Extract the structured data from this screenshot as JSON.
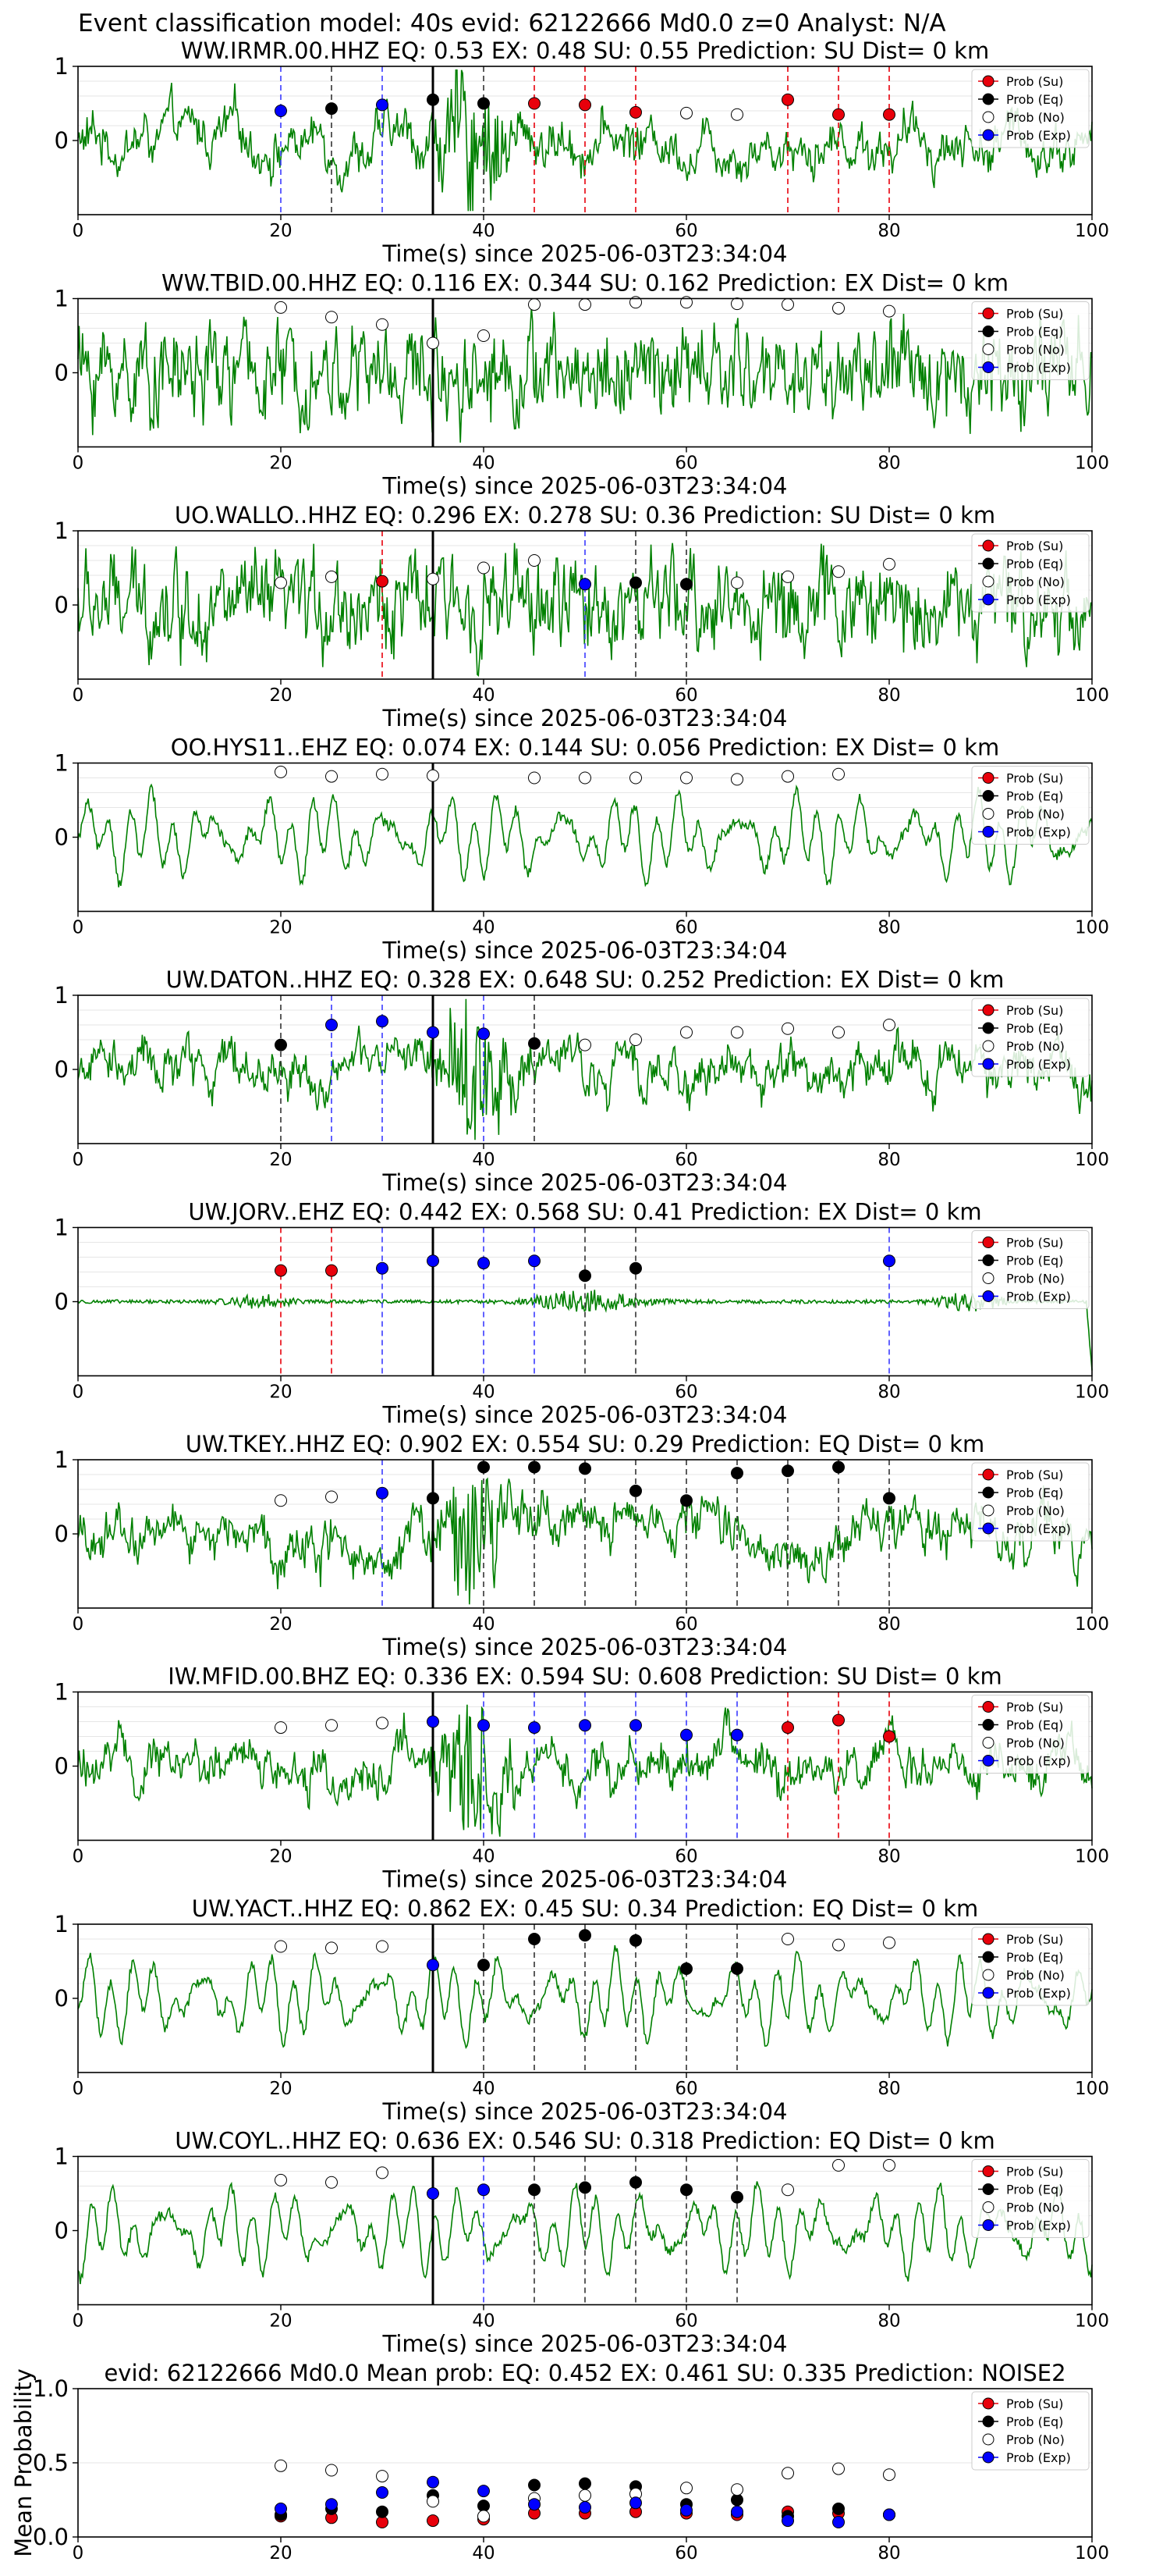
{
  "suptitle": "Event classification model: 40s evid: 62122666 Md0.0 z=0 Analyst: N/A",
  "legend_labels": [
    "Prob (Su)",
    "Prob (Eq)",
    "Prob (No)",
    "Prob (Exp)"
  ],
  "colors": {
    "su": "#e8000b",
    "eq": "#000000",
    "no": "#ffffff",
    "exp": "#0000ff",
    "wave": "#008000",
    "origin_line": "#000000"
  },
  "chart_data": [
    {
      "type": "line",
      "title": "WW.IRMR.00.HHZ   EQ: 0.53  EX: 0.48  SU: 0.55   Prediction: SU    Dist= 0 km",
      "xlabel": "Time(s) since 2025-06-03T23:34:04",
      "ylabel": "",
      "xlim": [
        0,
        100
      ],
      "ylim": [
        -1,
        1
      ],
      "yticks": [
        "1",
        "0"
      ],
      "xticks": [
        "0",
        "20",
        "40",
        "60",
        "80",
        "100"
      ],
      "grid": "y",
      "legend": "top-right",
      "style": "broadband",
      "origin": 35,
      "points": [
        {
          "t": 20,
          "p": 0.4,
          "c": "exp"
        },
        {
          "t": 25,
          "p": 0.43,
          "c": "eq"
        },
        {
          "t": 30,
          "p": 0.48,
          "c": "exp"
        },
        {
          "t": 35,
          "p": 0.55,
          "c": "eq"
        },
        {
          "t": 40,
          "p": 0.5,
          "c": "eq"
        },
        {
          "t": 45,
          "p": 0.5,
          "c": "su"
        },
        {
          "t": 50,
          "p": 0.48,
          "c": "su"
        },
        {
          "t": 55,
          "p": 0.38,
          "c": "su"
        },
        {
          "t": 60,
          "p": 0.37,
          "c": "no"
        },
        {
          "t": 65,
          "p": 0.35,
          "c": "no"
        },
        {
          "t": 70,
          "p": 0.55,
          "c": "su"
        },
        {
          "t": 75,
          "p": 0.35,
          "c": "su"
        },
        {
          "t": 80,
          "p": 0.35,
          "c": "su"
        }
      ]
    },
    {
      "type": "line",
      "title": "WW.TBID.00.HHZ   EQ: 0.116  EX: 0.344  SU: 0.162   Prediction: EX    Dist= 0 km",
      "xlabel": "Time(s) since 2025-06-03T23:34:04",
      "ylabel": "",
      "xlim": [
        0,
        100
      ],
      "ylim": [
        -1,
        1
      ],
      "yticks": [
        "1",
        "0"
      ],
      "xticks": [
        "0",
        "20",
        "40",
        "60",
        "80",
        "100"
      ],
      "grid": "y",
      "legend": "top-right",
      "style": "noisy",
      "origin": 35,
      "points": [
        {
          "t": 20,
          "p": 0.88,
          "c": "no"
        },
        {
          "t": 25,
          "p": 0.75,
          "c": "no"
        },
        {
          "t": 30,
          "p": 0.65,
          "c": "no"
        },
        {
          "t": 35,
          "p": 0.4,
          "c": "no"
        },
        {
          "t": 40,
          "p": 0.5,
          "c": "no"
        },
        {
          "t": 45,
          "p": 0.92,
          "c": "no"
        },
        {
          "t": 50,
          "p": 0.92,
          "c": "no"
        },
        {
          "t": 55,
          "p": 0.95,
          "c": "no"
        },
        {
          "t": 60,
          "p": 0.95,
          "c": "no"
        },
        {
          "t": 65,
          "p": 0.93,
          "c": "no"
        },
        {
          "t": 70,
          "p": 0.92,
          "c": "no"
        },
        {
          "t": 75,
          "p": 0.87,
          "c": "no"
        },
        {
          "t": 80,
          "p": 0.83,
          "c": "no"
        }
      ]
    },
    {
      "type": "line",
      "title": "UO.WALLO..HHZ   EQ: 0.296  EX: 0.278  SU: 0.36   Prediction: SU    Dist= 0 km",
      "xlabel": "Time(s) since 2025-06-03T23:34:04",
      "ylabel": "",
      "xlim": [
        0,
        100
      ],
      "ylim": [
        -1,
        1
      ],
      "yticks": [
        "1",
        "0"
      ],
      "xticks": [
        "0",
        "20",
        "40",
        "60",
        "80",
        "100"
      ],
      "grid": "y",
      "legend": "top-right",
      "style": "noisy",
      "origin": 35,
      "points": [
        {
          "t": 20,
          "p": 0.3,
          "c": "no"
        },
        {
          "t": 25,
          "p": 0.38,
          "c": "no"
        },
        {
          "t": 30,
          "p": 0.32,
          "c": "su"
        },
        {
          "t": 35,
          "p": 0.35,
          "c": "no"
        },
        {
          "t": 40,
          "p": 0.5,
          "c": "no"
        },
        {
          "t": 45,
          "p": 0.6,
          "c": "no"
        },
        {
          "t": 50,
          "p": 0.28,
          "c": "exp"
        },
        {
          "t": 55,
          "p": 0.3,
          "c": "eq"
        },
        {
          "t": 60,
          "p": 0.28,
          "c": "eq"
        },
        {
          "t": 65,
          "p": 0.3,
          "c": "no"
        },
        {
          "t": 70,
          "p": 0.38,
          "c": "no"
        },
        {
          "t": 75,
          "p": 0.45,
          "c": "no"
        },
        {
          "t": 80,
          "p": 0.55,
          "c": "no"
        }
      ]
    },
    {
      "type": "line",
      "title": "OO.HYS11..EHZ   EQ: 0.074  EX: 0.144  SU: 0.056   Prediction: EX    Dist= 0 km",
      "xlabel": "Time(s) since 2025-06-03T23:34:04",
      "ylabel": "",
      "xlim": [
        0,
        100
      ],
      "ylim": [
        -1,
        1
      ],
      "yticks": [
        "1",
        "0"
      ],
      "xticks": [
        "0",
        "20",
        "40",
        "60",
        "80",
        "100"
      ],
      "grid": "y",
      "legend": "top-right",
      "style": "oscillatory",
      "origin": 35,
      "points": [
        {
          "t": 20,
          "p": 0.88,
          "c": "no"
        },
        {
          "t": 25,
          "p": 0.82,
          "c": "no"
        },
        {
          "t": 30,
          "p": 0.85,
          "c": "no"
        },
        {
          "t": 35,
          "p": 0.83,
          "c": "no"
        },
        {
          "t": 45,
          "p": 0.8,
          "c": "no"
        },
        {
          "t": 50,
          "p": 0.8,
          "c": "no"
        },
        {
          "t": 55,
          "p": 0.8,
          "c": "no"
        },
        {
          "t": 60,
          "p": 0.8,
          "c": "no"
        },
        {
          "t": 65,
          "p": 0.78,
          "c": "no"
        },
        {
          "t": 70,
          "p": 0.82,
          "c": "no"
        },
        {
          "t": 75,
          "p": 0.85,
          "c": "no"
        }
      ]
    },
    {
      "type": "line",
      "title": "UW.DATON..HHZ   EQ: 0.328  EX: 0.648  SU: 0.252   Prediction: EX    Dist= 0 km",
      "xlabel": "Time(s) since 2025-06-03T23:34:04",
      "ylabel": "",
      "xlim": [
        0,
        100
      ],
      "ylim": [
        -1,
        1
      ],
      "yticks": [
        "1",
        "0"
      ],
      "xticks": [
        "0",
        "20",
        "40",
        "60",
        "80",
        "100"
      ],
      "grid": "y",
      "legend": "top-right",
      "style": "broadband",
      "origin": 35,
      "points": [
        {
          "t": 20,
          "p": 0.33,
          "c": "eq"
        },
        {
          "t": 25,
          "p": 0.6,
          "c": "exp"
        },
        {
          "t": 30,
          "p": 0.65,
          "c": "exp"
        },
        {
          "t": 35,
          "p": 0.5,
          "c": "exp"
        },
        {
          "t": 40,
          "p": 0.48,
          "c": "exp"
        },
        {
          "t": 45,
          "p": 0.35,
          "c": "eq"
        },
        {
          "t": 50,
          "p": 0.33,
          "c": "no"
        },
        {
          "t": 55,
          "p": 0.4,
          "c": "no"
        },
        {
          "t": 60,
          "p": 0.5,
          "c": "no"
        },
        {
          "t": 65,
          "p": 0.5,
          "c": "no"
        },
        {
          "t": 70,
          "p": 0.55,
          "c": "no"
        },
        {
          "t": 75,
          "p": 0.5,
          "c": "no"
        },
        {
          "t": 80,
          "p": 0.6,
          "c": "no"
        }
      ]
    },
    {
      "type": "line",
      "title": "UW.JORV..EHZ   EQ: 0.442  EX: 0.568  SU: 0.41   Prediction: EX    Dist= 0 km",
      "xlabel": "Time(s) since 2025-06-03T23:34:04",
      "ylabel": "",
      "xlim": [
        0,
        100
      ],
      "ylim": [
        -1,
        1
      ],
      "yticks": [
        "1",
        "0"
      ],
      "xticks": [
        "0",
        "20",
        "40",
        "60",
        "80",
        "100"
      ],
      "grid": "y",
      "legend": "top-right",
      "style": "quiet",
      "origin": 35,
      "points": [
        {
          "t": 20,
          "p": 0.42,
          "c": "su"
        },
        {
          "t": 25,
          "p": 0.42,
          "c": "su"
        },
        {
          "t": 30,
          "p": 0.45,
          "c": "exp"
        },
        {
          "t": 35,
          "p": 0.55,
          "c": "exp"
        },
        {
          "t": 40,
          "p": 0.52,
          "c": "exp"
        },
        {
          "t": 45,
          "p": 0.55,
          "c": "exp"
        },
        {
          "t": 50,
          "p": 0.35,
          "c": "eq"
        },
        {
          "t": 55,
          "p": 0.45,
          "c": "eq"
        },
        {
          "t": 80,
          "p": 0.55,
          "c": "exp"
        }
      ]
    },
    {
      "type": "line",
      "title": "UW.TKEY..HHZ   EQ: 0.902  EX: 0.554  SU: 0.29   Prediction: EQ    Dist= 0 km",
      "xlabel": "Time(s) since 2025-06-03T23:34:04",
      "ylabel": "",
      "xlim": [
        0,
        100
      ],
      "ylim": [
        -1,
        1
      ],
      "yticks": [
        "1",
        "0"
      ],
      "xticks": [
        "0",
        "20",
        "40",
        "60",
        "80",
        "100"
      ],
      "grid": "y",
      "legend": "top-right",
      "style": "broadband",
      "origin": 35,
      "points": [
        {
          "t": 20,
          "p": 0.45,
          "c": "no"
        },
        {
          "t": 25,
          "p": 0.5,
          "c": "no"
        },
        {
          "t": 30,
          "p": 0.55,
          "c": "exp"
        },
        {
          "t": 35,
          "p": 0.48,
          "c": "eq"
        },
        {
          "t": 40,
          "p": 0.9,
          "c": "eq"
        },
        {
          "t": 45,
          "p": 0.9,
          "c": "eq"
        },
        {
          "t": 50,
          "p": 0.88,
          "c": "eq"
        },
        {
          "t": 55,
          "p": 0.58,
          "c": "eq"
        },
        {
          "t": 60,
          "p": 0.45,
          "c": "eq"
        },
        {
          "t": 65,
          "p": 0.82,
          "c": "eq"
        },
        {
          "t": 70,
          "p": 0.85,
          "c": "eq"
        },
        {
          "t": 75,
          "p": 0.9,
          "c": "eq"
        },
        {
          "t": 80,
          "p": 0.48,
          "c": "eq"
        }
      ]
    },
    {
      "type": "line",
      "title": "IW.MFID.00.BHZ   EQ: 0.336  EX: 0.594  SU: 0.608   Prediction: SU    Dist= 0 km",
      "xlabel": "Time(s) since 2025-06-03T23:34:04",
      "ylabel": "",
      "xlim": [
        0,
        100
      ],
      "ylim": [
        -1,
        1
      ],
      "yticks": [
        "1",
        "0"
      ],
      "xticks": [
        "0",
        "20",
        "40",
        "60",
        "80",
        "100"
      ],
      "grid": "y",
      "legend": "top-right",
      "style": "broadband",
      "origin": 35,
      "points": [
        {
          "t": 20,
          "p": 0.52,
          "c": "no"
        },
        {
          "t": 25,
          "p": 0.55,
          "c": "no"
        },
        {
          "t": 30,
          "p": 0.58,
          "c": "no"
        },
        {
          "t": 35,
          "p": 0.6,
          "c": "exp"
        },
        {
          "t": 40,
          "p": 0.55,
          "c": "exp"
        },
        {
          "t": 45,
          "p": 0.52,
          "c": "exp"
        },
        {
          "t": 50,
          "p": 0.55,
          "c": "exp"
        },
        {
          "t": 55,
          "p": 0.55,
          "c": "exp"
        },
        {
          "t": 60,
          "p": 0.42,
          "c": "exp"
        },
        {
          "t": 65,
          "p": 0.42,
          "c": "exp"
        },
        {
          "t": 70,
          "p": 0.52,
          "c": "su"
        },
        {
          "t": 75,
          "p": 0.62,
          "c": "su"
        },
        {
          "t": 80,
          "p": 0.4,
          "c": "su"
        }
      ]
    },
    {
      "type": "line",
      "title": "UW.YACT..HHZ   EQ: 0.862  EX: 0.45  SU: 0.34   Prediction: EQ    Dist= 0 km",
      "xlabel": "Time(s) since 2025-06-03T23:34:04",
      "ylabel": "",
      "xlim": [
        0,
        100
      ],
      "ylim": [
        -1,
        1
      ],
      "yticks": [
        "1",
        "0"
      ],
      "xticks": [
        "0",
        "20",
        "40",
        "60",
        "80",
        "100"
      ],
      "grid": "y",
      "legend": "top-right",
      "style": "oscillatory",
      "origin": 35,
      "points": [
        {
          "t": 20,
          "p": 0.7,
          "c": "no"
        },
        {
          "t": 25,
          "p": 0.68,
          "c": "no"
        },
        {
          "t": 30,
          "p": 0.7,
          "c": "no"
        },
        {
          "t": 35,
          "p": 0.45,
          "c": "exp"
        },
        {
          "t": 40,
          "p": 0.45,
          "c": "eq"
        },
        {
          "t": 45,
          "p": 0.8,
          "c": "eq"
        },
        {
          "t": 50,
          "p": 0.85,
          "c": "eq"
        },
        {
          "t": 55,
          "p": 0.78,
          "c": "eq"
        },
        {
          "t": 60,
          "p": 0.4,
          "c": "eq"
        },
        {
          "t": 65,
          "p": 0.4,
          "c": "eq"
        },
        {
          "t": 70,
          "p": 0.8,
          "c": "no"
        },
        {
          "t": 75,
          "p": 0.72,
          "c": "no"
        },
        {
          "t": 80,
          "p": 0.75,
          "c": "no"
        }
      ]
    },
    {
      "type": "line",
      "title": "UW.COYL..HHZ   EQ: 0.636  EX: 0.546  SU: 0.318   Prediction: EQ    Dist= 0 km",
      "xlabel": "Time(s) since 2025-06-03T23:34:04",
      "ylabel": "",
      "xlim": [
        0,
        100
      ],
      "ylim": [
        -1,
        1
      ],
      "yticks": [
        "1",
        "0"
      ],
      "xticks": [
        "0",
        "20",
        "40",
        "60",
        "80",
        "100"
      ],
      "grid": "y",
      "legend": "top-right",
      "style": "oscillatory",
      "origin": 35,
      "points": [
        {
          "t": 20,
          "p": 0.68,
          "c": "no"
        },
        {
          "t": 25,
          "p": 0.65,
          "c": "no"
        },
        {
          "t": 30,
          "p": 0.78,
          "c": "no"
        },
        {
          "t": 35,
          "p": 0.5,
          "c": "exp"
        },
        {
          "t": 40,
          "p": 0.55,
          "c": "exp"
        },
        {
          "t": 45,
          "p": 0.55,
          "c": "eq"
        },
        {
          "t": 50,
          "p": 0.58,
          "c": "eq"
        },
        {
          "t": 55,
          "p": 0.65,
          "c": "eq"
        },
        {
          "t": 60,
          "p": 0.55,
          "c": "eq"
        },
        {
          "t": 65,
          "p": 0.45,
          "c": "eq"
        },
        {
          "t": 70,
          "p": 0.55,
          "c": "no"
        },
        {
          "t": 75,
          "p": 0.88,
          "c": "no"
        },
        {
          "t": 80,
          "p": 0.88,
          "c": "no"
        }
      ]
    },
    {
      "type": "scatter",
      "title": "evid: 62122666  Md0.0   Mean prob:   EQ: 0.452  EX: 0.461  SU: 0.335   Prediction: NOISE2",
      "xlabel": "",
      "ylabel": "Mean Probability",
      "xlim": [
        0,
        100
      ],
      "ylim": [
        0,
        1
      ],
      "yticks": [
        "0.0",
        "0.5",
        "1.0"
      ],
      "xticks": [
        "0",
        "20",
        "40",
        "60",
        "80",
        "100"
      ],
      "grid": "y",
      "legend": "top-right",
      "series": [
        {
          "name": "Prob (Su)",
          "c": "su",
          "x": [
            20,
            25,
            30,
            35,
            40,
            45,
            50,
            55,
            60,
            65,
            70,
            75,
            80
          ],
          "y": [
            0.14,
            0.13,
            0.1,
            0.11,
            0.12,
            0.16,
            0.16,
            0.17,
            0.16,
            0.15,
            0.17,
            0.16,
            0.15
          ]
        },
        {
          "name": "Prob (Eq)",
          "c": "eq",
          "x": [
            20,
            25,
            30,
            35,
            40,
            45,
            50,
            55,
            60,
            65,
            70,
            75,
            80
          ],
          "y": [
            0.15,
            0.19,
            0.17,
            0.28,
            0.21,
            0.35,
            0.36,
            0.34,
            0.22,
            0.25,
            0.14,
            0.19,
            0.15
          ]
        },
        {
          "name": "Prob (No)",
          "c": "no",
          "x": [
            20,
            25,
            30,
            35,
            40,
            45,
            50,
            55,
            60,
            65,
            70,
            75,
            80
          ],
          "y": [
            0.48,
            0.45,
            0.41,
            0.24,
            0.14,
            0.26,
            0.28,
            0.29,
            0.33,
            0.32,
            0.43,
            0.46,
            0.42
          ]
        },
        {
          "name": "Prob (Exp)",
          "c": "exp",
          "x": [
            20,
            25,
            30,
            35,
            40,
            45,
            50,
            55,
            60,
            65,
            70,
            75,
            80
          ],
          "y": [
            0.19,
            0.22,
            0.3,
            0.37,
            0.31,
            0.22,
            0.2,
            0.23,
            0.18,
            0.17,
            0.11,
            0.1,
            0.15
          ]
        }
      ]
    }
  ]
}
